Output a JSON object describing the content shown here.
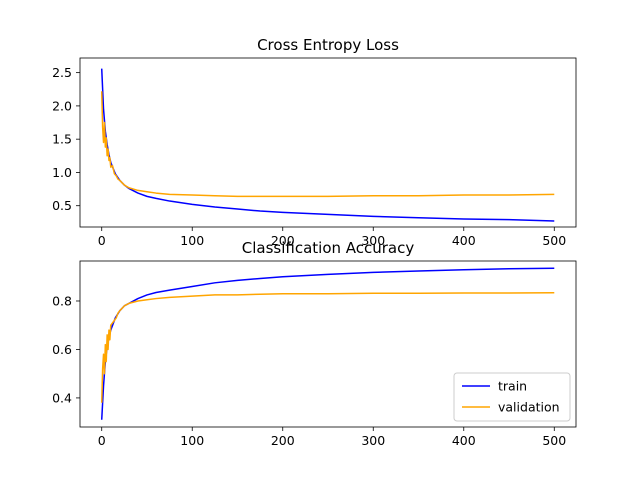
{
  "chart_data": [
    {
      "type": "line",
      "title": "Cross Entropy Loss",
      "xlabel": "",
      "ylabel": "",
      "xlim": [
        -24,
        524
      ],
      "ylim": [
        0.18,
        2.72
      ],
      "xticks": [
        0,
        100,
        200,
        300,
        400,
        500
      ],
      "yticks": [
        0.5,
        1.0,
        1.5,
        2.0,
        2.5
      ],
      "ytick_labels": [
        "0.5",
        "1.0",
        "1.5",
        "2.0",
        "2.5"
      ],
      "grid": false,
      "series": [
        {
          "name": "train",
          "color": "#0000ff",
          "x": [
            0,
            2,
            4,
            6,
            8,
            10,
            15,
            20,
            25,
            30,
            40,
            50,
            60,
            75,
            100,
            125,
            150,
            175,
            200,
            250,
            300,
            350,
            400,
            450,
            500
          ],
          "y": [
            2.56,
            1.95,
            1.62,
            1.42,
            1.27,
            1.15,
            0.98,
            0.88,
            0.81,
            0.76,
            0.69,
            0.64,
            0.61,
            0.57,
            0.52,
            0.48,
            0.45,
            0.42,
            0.4,
            0.37,
            0.34,
            0.32,
            0.3,
            0.29,
            0.27
          ]
        },
        {
          "name": "validation",
          "color": "#ffa500",
          "x": [
            0,
            1,
            2,
            3,
            4,
            5,
            6,
            7,
            8,
            9,
            10,
            12,
            14,
            16,
            18,
            20,
            25,
            30,
            40,
            50,
            60,
            75,
            100,
            125,
            150,
            175,
            200,
            250,
            300,
            350,
            400,
            450,
            500
          ],
          "y": [
            2.22,
            1.68,
            1.45,
            1.75,
            1.38,
            1.52,
            1.25,
            1.35,
            1.18,
            1.22,
            1.08,
            1.1,
            0.98,
            0.95,
            0.9,
            0.88,
            0.81,
            0.77,
            0.73,
            0.71,
            0.69,
            0.67,
            0.66,
            0.65,
            0.64,
            0.64,
            0.64,
            0.64,
            0.65,
            0.65,
            0.66,
            0.66,
            0.67
          ]
        }
      ]
    },
    {
      "type": "line",
      "title": "Classification Accuracy",
      "xlabel": "",
      "ylabel": "",
      "xlim": [
        -24,
        524
      ],
      "ylim": [
        0.28,
        0.965
      ],
      "xticks": [
        0,
        100,
        200,
        300,
        400,
        500
      ],
      "yticks": [
        0.4,
        0.6,
        0.8
      ],
      "ytick_labels": [
        "0.4",
        "0.6",
        "0.8"
      ],
      "grid": false,
      "legend": "lower-right",
      "series": [
        {
          "name": "train",
          "color": "#0000ff",
          "x": [
            0,
            2,
            4,
            6,
            8,
            10,
            15,
            20,
            25,
            30,
            40,
            50,
            60,
            75,
            100,
            125,
            150,
            175,
            200,
            250,
            300,
            350,
            400,
            450,
            500
          ],
          "y": [
            0.31,
            0.45,
            0.55,
            0.61,
            0.65,
            0.68,
            0.73,
            0.76,
            0.78,
            0.79,
            0.81,
            0.825,
            0.835,
            0.845,
            0.86,
            0.875,
            0.885,
            0.893,
            0.9,
            0.91,
            0.918,
            0.924,
            0.929,
            0.933,
            0.935
          ]
        },
        {
          "name": "validation",
          "color": "#ffa500",
          "x": [
            0,
            1,
            2,
            3,
            4,
            5,
            6,
            7,
            8,
            9,
            10,
            12,
            14,
            16,
            18,
            20,
            25,
            30,
            40,
            50,
            60,
            75,
            100,
            125,
            150,
            175,
            200,
            250,
            300,
            350,
            400,
            450,
            500
          ],
          "y": [
            0.38,
            0.52,
            0.58,
            0.5,
            0.62,
            0.55,
            0.66,
            0.6,
            0.68,
            0.64,
            0.7,
            0.71,
            0.72,
            0.73,
            0.75,
            0.76,
            0.78,
            0.79,
            0.8,
            0.805,
            0.81,
            0.815,
            0.82,
            0.825,
            0.825,
            0.828,
            0.83,
            0.83,
            0.832,
            0.832,
            0.833,
            0.833,
            0.834
          ]
        }
      ]
    }
  ]
}
